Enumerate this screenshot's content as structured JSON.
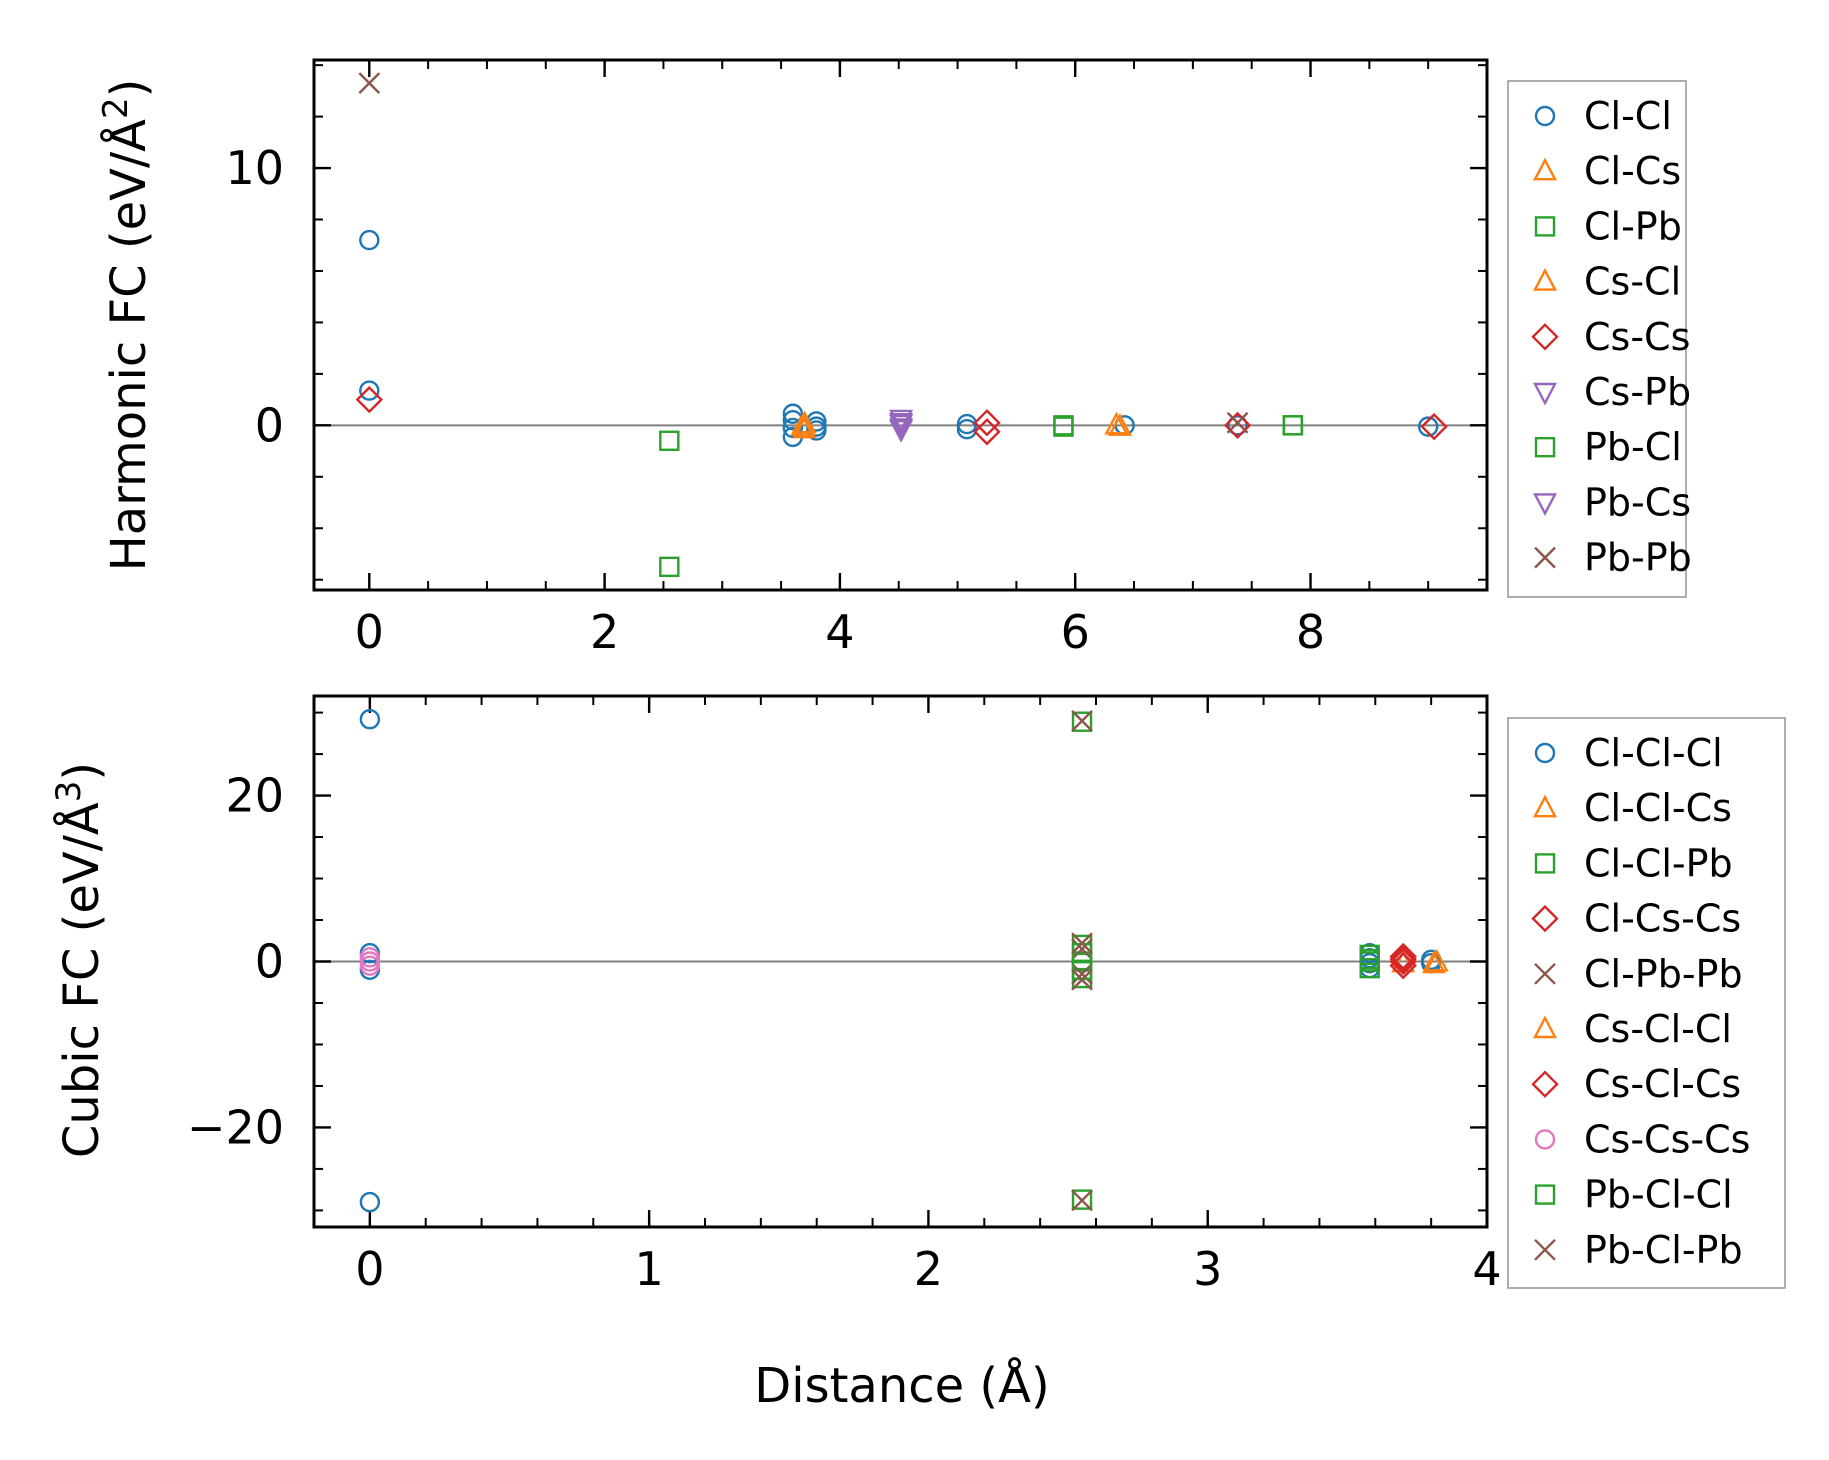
{
  "chart_data": [
    {
      "id": "harmonic",
      "type": "scatter",
      "ylabel_main": "Harmonic FC (eV/Å",
      "ylabel_sup": "2",
      "ylabel_end": ")",
      "xlabel": "",
      "xlim": [
        -0.47,
        9.5
      ],
      "ylim": [
        -6.4,
        14.2
      ],
      "xticks": [
        0,
        2,
        4,
        6,
        8
      ],
      "xtick_labels": [
        "0",
        "2",
        "4",
        "6",
        "8"
      ],
      "yticks": [
        0,
        10
      ],
      "ytick_labels": [
        "0",
        "10"
      ],
      "x_minor_step": 0.5,
      "y_minor_step": 2,
      "zero_line": true,
      "legend_position": "outside-right",
      "series": [
        {
          "name": "Cl-Cl",
          "marker": "circle",
          "color": "#1f77b4",
          "x": [
            0,
            0,
            3.6,
            3.6,
            3.6,
            3.6,
            3.8,
            3.8,
            3.8,
            5.08,
            5.08,
            6.42,
            7.38,
            9.0
          ],
          "y": [
            7.2,
            1.35,
            0.45,
            0.2,
            -0.1,
            -0.45,
            0.15,
            -0.05,
            -0.2,
            0.05,
            -0.15,
            0.0,
            0.0,
            -0.05
          ]
        },
        {
          "name": "Cl-Cs",
          "marker": "triangle-up",
          "color": "#ff7f0e",
          "x": [
            3.7,
            3.7,
            6.35
          ],
          "y": [
            0.05,
            -0.15,
            0.0
          ]
        },
        {
          "name": "Cl-Pb",
          "marker": "square",
          "color": "#2ca02c",
          "x": [
            2.55,
            2.55,
            5.9,
            7.85
          ],
          "y": [
            -0.6,
            -5.5,
            0.0,
            0.0
          ]
        },
        {
          "name": "Cs-Cl",
          "marker": "triangle-up",
          "color": "#ff7f0e",
          "x": [
            3.68,
            6.38
          ],
          "y": [
            -0.05,
            -0.05
          ]
        },
        {
          "name": "Cs-Cs",
          "marker": "diamond",
          "color": "#d62728",
          "x": [
            0,
            5.25,
            5.25,
            7.38,
            9.05
          ],
          "y": [
            1.0,
            0.1,
            -0.25,
            0.0,
            -0.05
          ]
        },
        {
          "name": "Cs-Pb",
          "marker": "triangle-down",
          "color": "#9467bd",
          "x": [
            4.52,
            4.52,
            4.52
          ],
          "y": [
            0.25,
            0.05,
            -0.15
          ]
        },
        {
          "name": "Pb-Cl",
          "marker": "square",
          "color": "#2ca02c",
          "x": [
            5.9,
            7.85
          ],
          "y": [
            -0.05,
            0.0
          ]
        },
        {
          "name": "Pb-Cs",
          "marker": "triangle-down",
          "color": "#9467bd",
          "x": [
            4.52,
            4.52
          ],
          "y": [
            0.12,
            -0.08
          ]
        },
        {
          "name": "Pb-Pb",
          "marker": "x",
          "color": "#8c564b",
          "x": [
            0,
            7.38
          ],
          "y": [
            13.3,
            0.1
          ]
        }
      ]
    },
    {
      "id": "cubic",
      "type": "scatter",
      "ylabel_main": "Cubic FC (eV/Å",
      "ylabel_sup": "3",
      "ylabel_end": ")",
      "xlabel": "Distance (Å)",
      "xlim": [
        -0.2,
        4.0
      ],
      "ylim": [
        -32,
        32
      ],
      "xticks": [
        0,
        1,
        2,
        3,
        4
      ],
      "xtick_labels": [
        "0",
        "1",
        "2",
        "3",
        "4"
      ],
      "yticks": [
        -20,
        0,
        20
      ],
      "ytick_labels": [
        "−20",
        "0",
        "20"
      ],
      "x_minor_step": 0.2,
      "y_minor_step": 5,
      "zero_line": true,
      "legend_position": "outside-right",
      "series": [
        {
          "name": "Cl-Cl-Cl",
          "marker": "circle",
          "color": "#1f77b4",
          "x": [
            0,
            0,
            0,
            0,
            3.58,
            3.58,
            3.58,
            3.58,
            3.8,
            3.8
          ],
          "y": [
            29.2,
            -29.0,
            1.0,
            -1.0,
            1.0,
            0.4,
            -0.2,
            -0.8,
            0.2,
            -0.2
          ]
        },
        {
          "name": "Cl-Cl-Cs",
          "marker": "triangle-up",
          "color": "#ff7f0e",
          "x": [
            3.81,
            3.7
          ],
          "y": [
            -0.3,
            -0.2
          ]
        },
        {
          "name": "Cl-Cl-Pb",
          "marker": "square",
          "color": "#2ca02c",
          "x": [
            2.55,
            2.55,
            2.55,
            2.55,
            2.55,
            3.58,
            3.58,
            3.58
          ],
          "y": [
            28.9,
            -28.7,
            2.0,
            0.0,
            -2.0,
            0.8,
            0.0,
            -0.8
          ]
        },
        {
          "name": "Cl-Cs-Cs",
          "marker": "diamond",
          "color": "#d62728",
          "x": [
            3.7,
            3.7,
            3.7
          ],
          "y": [
            0.6,
            0.0,
            -0.5
          ]
        },
        {
          "name": "Cl-Pb-Pb",
          "marker": "x",
          "color": "#8c564b",
          "x": [
            2.55,
            2.55,
            2.55,
            2.55
          ],
          "y": [
            29.0,
            -28.8,
            1.5,
            -1.5
          ]
        },
        {
          "name": "Cs-Cl-Cl",
          "marker": "triangle-up",
          "color": "#ff7f0e",
          "x": [
            3.82
          ],
          "y": [
            -0.1
          ]
        },
        {
          "name": "Cs-Cl-Cs",
          "marker": "diamond",
          "color": "#d62728",
          "x": [
            3.7
          ],
          "y": [
            0.3
          ]
        },
        {
          "name": "Cs-Cs-Cs",
          "marker": "circle",
          "color": "#e377c2",
          "x": [
            0,
            0,
            0
          ],
          "y": [
            0.5,
            0.0,
            -0.5
          ]
        },
        {
          "name": "Pb-Cl-Cl",
          "marker": "square",
          "color": "#2ca02c",
          "x": [
            2.55,
            2.55,
            3.58
          ],
          "y": [
            1.0,
            -1.0,
            0.3
          ]
        },
        {
          "name": "Pb-Cl-Pb",
          "marker": "x",
          "color": "#8c564b",
          "x": [
            2.55,
            2.55
          ],
          "y": [
            2.2,
            -2.2
          ]
        }
      ]
    }
  ]
}
